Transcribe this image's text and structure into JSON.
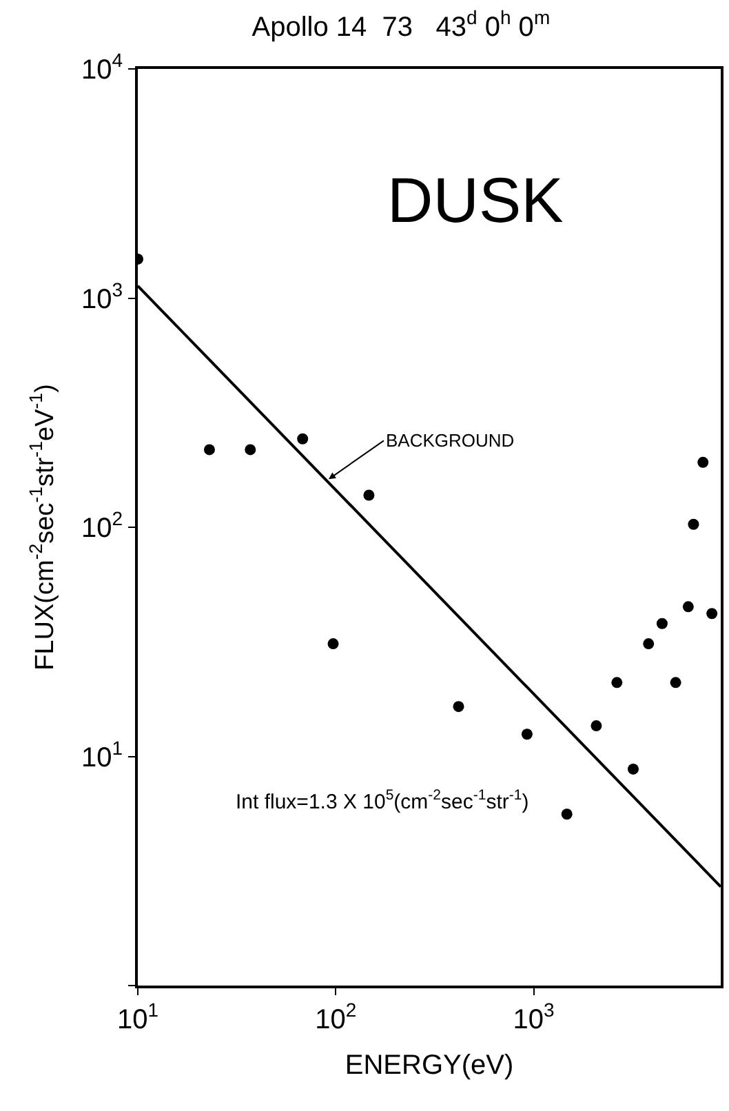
{
  "chart_data": {
    "type": "scatter",
    "title": "Apollo 14  73   43$^{d}$ 0$^{h}$ 0$^{m}$",
    "xlabel": "ENERGY(eV)",
    "ylabel": "FLUX(cm$^{-2}$sec$^{-1}$str$^{-1}$eV$^{-1}$)",
    "log": "xy",
    "xlim": [
      10,
      8800
    ],
    "ylim": [
      1,
      10000
    ],
    "xticks": [
      {
        "value": 10,
        "label": "10$^{1}$"
      },
      {
        "value": 100,
        "label": "10$^{2}$"
      },
      {
        "value": 1000,
        "label": "10$^{3}$"
      }
    ],
    "yticks": [
      {
        "value": 1,
        "label": null
      },
      {
        "value": 10,
        "label": "10$^{1}$"
      },
      {
        "value": 100,
        "label": "10$^{2}$"
      },
      {
        "value": 1000,
        "label": "10$^{3}$"
      },
      {
        "value": 10000,
        "label": "10$^{4}$"
      }
    ],
    "marker": "circle",
    "series": [
      {
        "color": "#000000",
        "x": [
          10,
          23,
          37,
          68,
          147,
          97,
          417,
          925,
          1470,
          2070,
          3180,
          2630,
          3800,
          4450,
          5210,
          6030,
          7940,
          6410,
          7160
        ],
        "values": [
          1480,
          218,
          218,
          243,
          138,
          31,
          16.5,
          12.5,
          5.6,
          13.6,
          8.8,
          21,
          31,
          38,
          21,
          45,
          42,
          103,
          192
        ]
      },
      {
        "type": "line",
        "color": "#000000",
        "marker": "none",
        "x": [
          10,
          8800
        ],
        "values": [
          1130,
          2.7
        ]
      }
    ],
    "annotations": [
      "DUSK",
      {
        "text": "BACKGROUND",
        "x": 92,
        "y": 162
      },
      "Int flux=1.3 X 10$^{5}$(cm$^{-2}$sec$^{-1}$str$^{-1}$)"
    ]
  }
}
